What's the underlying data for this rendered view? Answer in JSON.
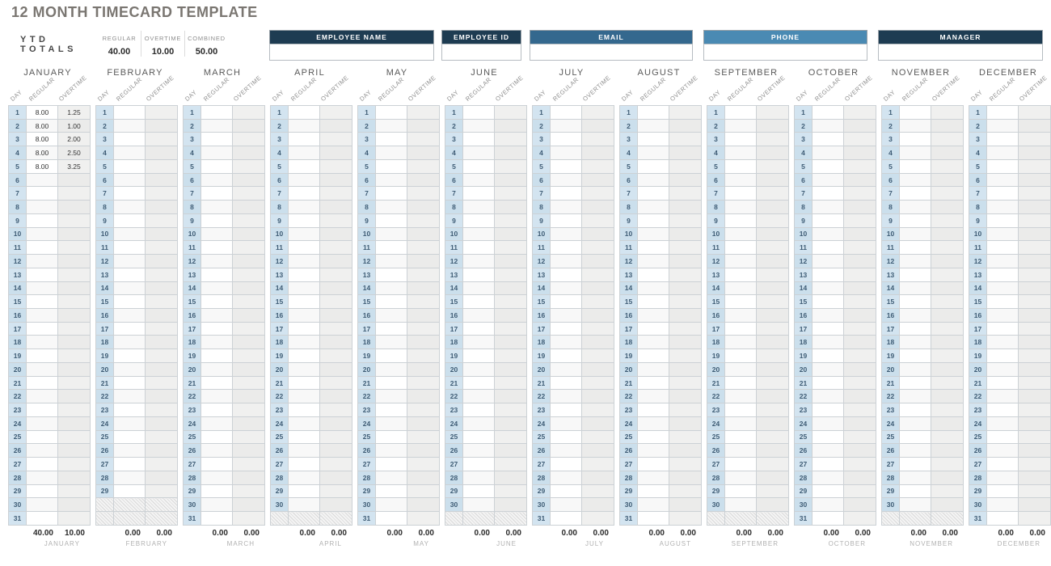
{
  "title": "12 MONTH TIMECARD TEMPLATE",
  "ytd": {
    "label": "YTD TOTALS",
    "stats": [
      {
        "label": "REGULAR",
        "value": "40.00"
      },
      {
        "label": "OVERTIME",
        "value": "10.00"
      },
      {
        "label": "COMBINED",
        "value": "50.00"
      }
    ]
  },
  "employee_fields": [
    {
      "label": "EMPLOYEE NAME",
      "value": "",
      "color": "#1e3c52"
    },
    {
      "label": "EMPLOYEE ID",
      "value": "",
      "color": "#1e3c52"
    },
    {
      "label": "EMAIL",
      "value": "",
      "color": "#34688e"
    },
    {
      "label": "PHONE",
      "value": "",
      "color": "#4a8ab3"
    },
    {
      "label": "MANAGER",
      "value": "",
      "color": "#1e3c52"
    }
  ],
  "columns": {
    "day": "DAY",
    "regular": "REGULAR",
    "overtime": "OVERTIME"
  },
  "months": [
    {
      "name": "JANUARY",
      "days": 31,
      "entries": {
        "1": [
          "8.00",
          "1.25"
        ],
        "2": [
          "8.00",
          "1.00"
        ],
        "3": [
          "8.00",
          "2.00"
        ],
        "4": [
          "8.00",
          "2.50"
        ],
        "5": [
          "8.00",
          "3.25"
        ]
      },
      "totals": [
        "40.00",
        "10.00"
      ]
    },
    {
      "name": "FEBRUARY",
      "days": 29,
      "entries": {},
      "totals": [
        "0.00",
        "0.00"
      ]
    },
    {
      "name": "MARCH",
      "days": 31,
      "entries": {},
      "totals": [
        "0.00",
        "0.00"
      ]
    },
    {
      "name": "APRIL",
      "days": 30,
      "entries": {},
      "totals": [
        "0.00",
        "0.00"
      ]
    },
    {
      "name": "MAY",
      "days": 31,
      "entries": {},
      "totals": [
        "0.00",
        "0.00"
      ]
    },
    {
      "name": "JUNE",
      "days": 30,
      "entries": {},
      "totals": [
        "0.00",
        "0.00"
      ]
    },
    {
      "name": "JULY",
      "days": 31,
      "entries": {},
      "totals": [
        "0.00",
        "0.00"
      ]
    },
    {
      "name": "AUGUST",
      "days": 31,
      "entries": {},
      "totals": [
        "0.00",
        "0.00"
      ]
    },
    {
      "name": "SEPTEMBER",
      "days": 30,
      "entries": {},
      "totals": [
        "0.00",
        "0.00"
      ]
    },
    {
      "name": "OCTOBER",
      "days": 31,
      "entries": {},
      "totals": [
        "0.00",
        "0.00"
      ]
    },
    {
      "name": "NOVEMBER",
      "days": 30,
      "entries": {},
      "totals": [
        "0.00",
        "0.00"
      ]
    },
    {
      "name": "DECEMBER",
      "days": 31,
      "entries": {},
      "totals": [
        "0.00",
        "0.00"
      ]
    }
  ],
  "colors": {
    "title_text": "#7a7671",
    "dark_header": "#1e3c52",
    "email_header": "#34688e",
    "phone_header": "#4a8ab3",
    "day_cell": "#d3e4f0",
    "overtime_cell": "#f0f0ef"
  }
}
